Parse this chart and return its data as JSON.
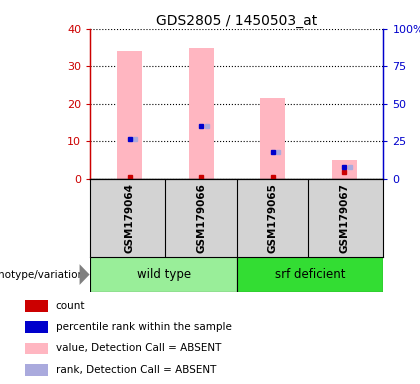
{
  "title": "GDS2805 / 1450503_at",
  "samples": [
    "GSM179064",
    "GSM179066",
    "GSM179065",
    "GSM179067"
  ],
  "pink_bar_values": [
    34.0,
    35.0,
    21.5,
    5.0
  ],
  "red_dot_values": [
    0.3,
    0.3,
    0.3,
    1.8
  ],
  "blue_dot_values": [
    10.5,
    14.0,
    7.0,
    3.0
  ],
  "light_blue_dot_values": [
    10.5,
    14.0,
    7.0,
    3.0
  ],
  "ylim": [
    0,
    40
  ],
  "yticks": [
    0,
    10,
    20,
    30,
    40
  ],
  "y2ticks": [
    0,
    25,
    50,
    75,
    100
  ],
  "y2tick_labels": [
    "0",
    "25",
    "50",
    "75",
    "100%"
  ],
  "red_color": "#CC0000",
  "blue_color": "#0000CC",
  "pink_color": "#FFB6C1",
  "light_blue_color": "#AAAADD",
  "bg_color": "#D3D3D3",
  "wt_color": "#99EE99",
  "srf_color": "#33DD33",
  "group_label": "genotype/variation",
  "wt_label": "wild type",
  "srf_label": "srf deficient",
  "legend_items": [
    {
      "label": "count",
      "color": "#CC0000"
    },
    {
      "label": "percentile rank within the sample",
      "color": "#0000CC"
    },
    {
      "label": "value, Detection Call = ABSENT",
      "color": "#FFB6C1"
    },
    {
      "label": "rank, Detection Call = ABSENT",
      "color": "#AAAADD"
    }
  ]
}
